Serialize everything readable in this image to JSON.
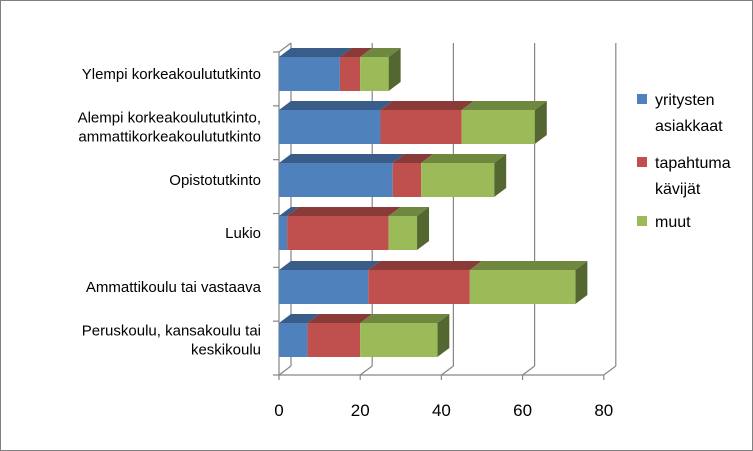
{
  "chart_data": {
    "type": "bar",
    "orientation": "horizontal",
    "stacked": true,
    "style": "3d",
    "title": "",
    "xlabel": "",
    "ylabel": "",
    "xlim": [
      0,
      80
    ],
    "x_ticks": [
      "0",
      "20",
      "40",
      "60",
      "80"
    ],
    "grid": true,
    "legend_position": "right",
    "categories": [
      [
        "Ylempi korkeakoulututkinto"
      ],
      [
        "Alempi korkeakoulututkinto,",
        "ammattikorkeakoulututkinto"
      ],
      [
        "Opistotutkinto"
      ],
      [
        "Lukio"
      ],
      [
        "Ammattikoulu tai vastaava"
      ],
      [
        "Peruskoulu, kansakoulu tai",
        "keskikoulu"
      ]
    ],
    "series": [
      {
        "name": [
          "yritysten",
          "asiakkaat"
        ],
        "color": "#4F81BD",
        "values": [
          15,
          25,
          28,
          2,
          22,
          7
        ]
      },
      {
        "name": [
          "tapahtuma",
          "kävijät"
        ],
        "color": "#C0504D",
        "values": [
          5,
          20,
          7,
          25,
          25,
          13
        ]
      },
      {
        "name": [
          "muut"
        ],
        "color": "#9BBB59",
        "values": [
          7,
          18,
          18,
          7,
          26,
          19
        ]
      }
    ]
  }
}
